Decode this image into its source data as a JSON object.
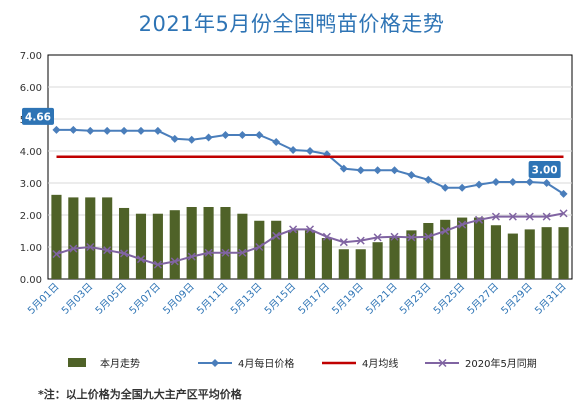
{
  "chart_data": {
    "type": "bar",
    "title": "2021年5月份全国鸭苗价格走势",
    "categories": [
      "5月01日",
      "5月02日",
      "5月03日",
      "5月04日",
      "5月05日",
      "5月06日",
      "5月07日",
      "5月08日",
      "5月09日",
      "5月10日",
      "5月11日",
      "5月12日",
      "5月13日",
      "5月14日",
      "5月15日",
      "5月16日",
      "5月17日",
      "5月18日",
      "5月19日",
      "5月20日",
      "5月21日",
      "5月22日",
      "5月23日",
      "5月24日",
      "5月25日",
      "5月26日",
      "5月27日",
      "5月28日",
      "5月29日",
      "5月30日",
      "5月31日"
    ],
    "x_tick_labels": [
      "5月01日",
      "5月03日",
      "5月05日",
      "5月07日",
      "5月09日",
      "5月11日",
      "5月13日",
      "5月15日",
      "5月17日",
      "5月19日",
      "5月21日",
      "5月23日",
      "5月25日",
      "5月27日",
      "5月29日",
      "5月31日"
    ],
    "ylim": [
      0,
      7
    ],
    "yticks": [
      "0.00",
      "1.00",
      "2.00",
      "3.00",
      "4.00",
      "5.00",
      "6.00",
      "7.00"
    ],
    "grid": "horizontal",
    "legend_position": "bottom",
    "series": [
      {
        "name": "本月走势",
        "kind": "bar",
        "color": "#4f6228",
        "values": [
          2.63,
          2.55,
          2.55,
          2.55,
          2.22,
          2.04,
          2.04,
          2.15,
          2.25,
          2.25,
          2.25,
          2.04,
          1.82,
          1.82,
          1.52,
          1.52,
          1.28,
          0.93,
          0.93,
          1.15,
          1.32,
          1.52,
          1.75,
          1.85,
          1.92,
          1.92,
          1.68,
          1.42,
          1.55,
          1.62,
          1.62
        ]
      },
      {
        "name": "4月每日价格",
        "kind": "line",
        "marker": "diamond",
        "color": "#4a7ebb",
        "values": [
          4.66,
          4.66,
          4.63,
          4.63,
          4.63,
          4.63,
          4.63,
          4.38,
          4.35,
          4.42,
          4.5,
          4.5,
          4.5,
          4.28,
          4.03,
          4.0,
          3.9,
          3.45,
          3.4,
          3.4,
          3.4,
          3.25,
          3.1,
          2.85,
          2.85,
          2.95,
          3.03,
          3.03,
          3.03,
          3.0,
          2.66
        ]
      },
      {
        "name": "4月均线",
        "kind": "line",
        "color": "#c00000",
        "values": [
          3.82,
          3.82,
          3.82,
          3.82,
          3.82,
          3.82,
          3.82,
          3.82,
          3.82,
          3.82,
          3.82,
          3.82,
          3.82,
          3.82,
          3.82,
          3.82,
          3.82,
          3.82,
          3.82,
          3.82,
          3.82,
          3.82,
          3.82,
          3.82,
          3.82,
          3.82,
          3.82,
          3.82,
          3.82,
          3.82,
          3.82
        ]
      },
      {
        "name": "2020年5月同期",
        "kind": "line",
        "marker": "x",
        "color": "#8064a2",
        "values": [
          0.78,
          0.95,
          1.0,
          0.9,
          0.8,
          0.62,
          0.45,
          0.55,
          0.7,
          0.82,
          0.82,
          0.82,
          1.0,
          1.35,
          1.55,
          1.55,
          1.32,
          1.15,
          1.2,
          1.3,
          1.32,
          1.3,
          1.32,
          1.5,
          1.7,
          1.85,
          1.95,
          1.95,
          1.95,
          1.95,
          2.05
        ]
      }
    ],
    "annotations": [
      {
        "text": "4.66",
        "series": 1,
        "index": 0
      },
      {
        "text": "3.00",
        "series": 1,
        "index": 29
      }
    ]
  },
  "footnote": "*注：以上价格为全国九大主产区平均价格"
}
